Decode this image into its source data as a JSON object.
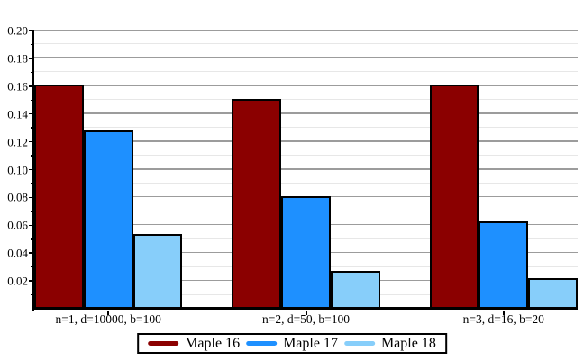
{
  "chart_data": {
    "type": "bar",
    "title": "",
    "xlabel": "",
    "ylabel": "",
    "categories": [
      "n=1, d=10000, b=100",
      "n=2, d=50, b=100",
      "n=3, d=16, b=20"
    ],
    "series": [
      {
        "name": "Maple 16",
        "color": "#8B0000",
        "values": [
          0.161,
          0.151,
          0.161
        ]
      },
      {
        "name": "Maple 17",
        "color": "#1E90FF",
        "values": [
          0.128,
          0.081,
          0.063
        ]
      },
      {
        "name": "Maple 18",
        "color": "#87CEFA",
        "values": [
          0.054,
          0.027,
          0.022
        ]
      }
    ],
    "ylim": [
      0,
      0.2
    ],
    "y_major_step": 0.02,
    "y_minor_step": 0.01,
    "y_tick_labels": [
      "0.02",
      "0.04",
      "0.06",
      "0.08",
      "0.10",
      "0.12",
      "0.14",
      "0.16",
      "0.18",
      "0.20"
    ],
    "grid": true,
    "legend_position": "bottom-center"
  },
  "colors": {
    "background": "#FFFFFF",
    "axis": "#000000",
    "bar_border": "#000000",
    "major_grid": "#9C9C9C",
    "minor_grid": "#E7E7E7"
  }
}
